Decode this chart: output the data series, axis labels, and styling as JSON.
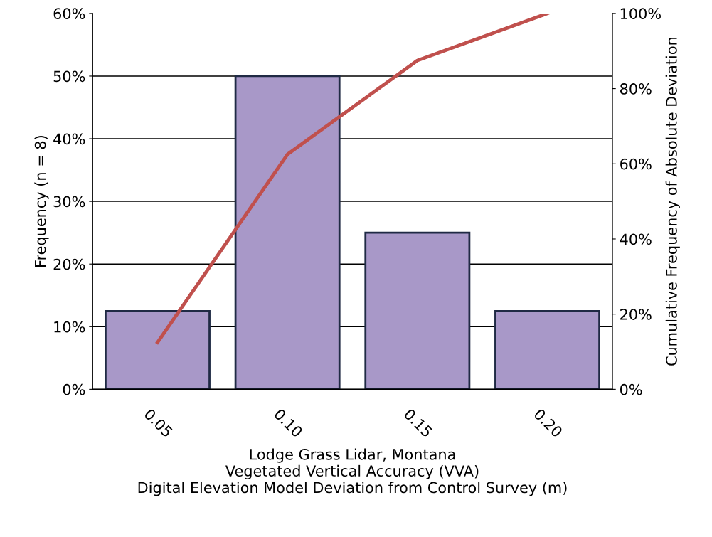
{
  "chart_data": {
    "type": "bar",
    "xlabel": "Lodge Grass Lidar, Montana\nVegetated Vertical Accuracy (VVA)\nDigital Elevation Model Deviation from Control Survey (m)",
    "ylabel": "Frequency (n = 8)",
    "y2label": "Cumulative Frequency of Absolute Deviation",
    "categories": [
      "0.05",
      "0.10",
      "0.15",
      "0.20"
    ],
    "series": [
      {
        "color": "#a898c8",
        "values": [
          12.5,
          50,
          25,
          12.5
        ]
      },
      {
        "type": "line",
        "axis": "y2",
        "color": "#c0504d",
        "values": [
          12.5,
          62.5,
          87.5,
          100
        ]
      }
    ],
    "ylim": [
      0,
      60
    ],
    "yticks": [
      {
        "value": 0,
        "label": "0%"
      },
      {
        "value": 10,
        "label": "10%"
      },
      {
        "value": 20,
        "label": "20%"
      },
      {
        "value": 30,
        "label": "30%"
      },
      {
        "value": 40,
        "label": "40%"
      },
      {
        "value": 50,
        "label": "50%"
      },
      {
        "value": 60,
        "label": "60%"
      }
    ],
    "y2lim": [
      0,
      100
    ],
    "y2ticks": [
      {
        "value": 0,
        "label": "0%"
      },
      {
        "value": 20,
        "label": "20%"
      },
      {
        "value": 40,
        "label": "40%"
      },
      {
        "value": 60,
        "label": "60%"
      },
      {
        "value": 80,
        "label": "80%"
      },
      {
        "value": 100,
        "label": "100%"
      }
    ],
    "grid": "y",
    "marker": "none",
    "line_style": "solid"
  }
}
